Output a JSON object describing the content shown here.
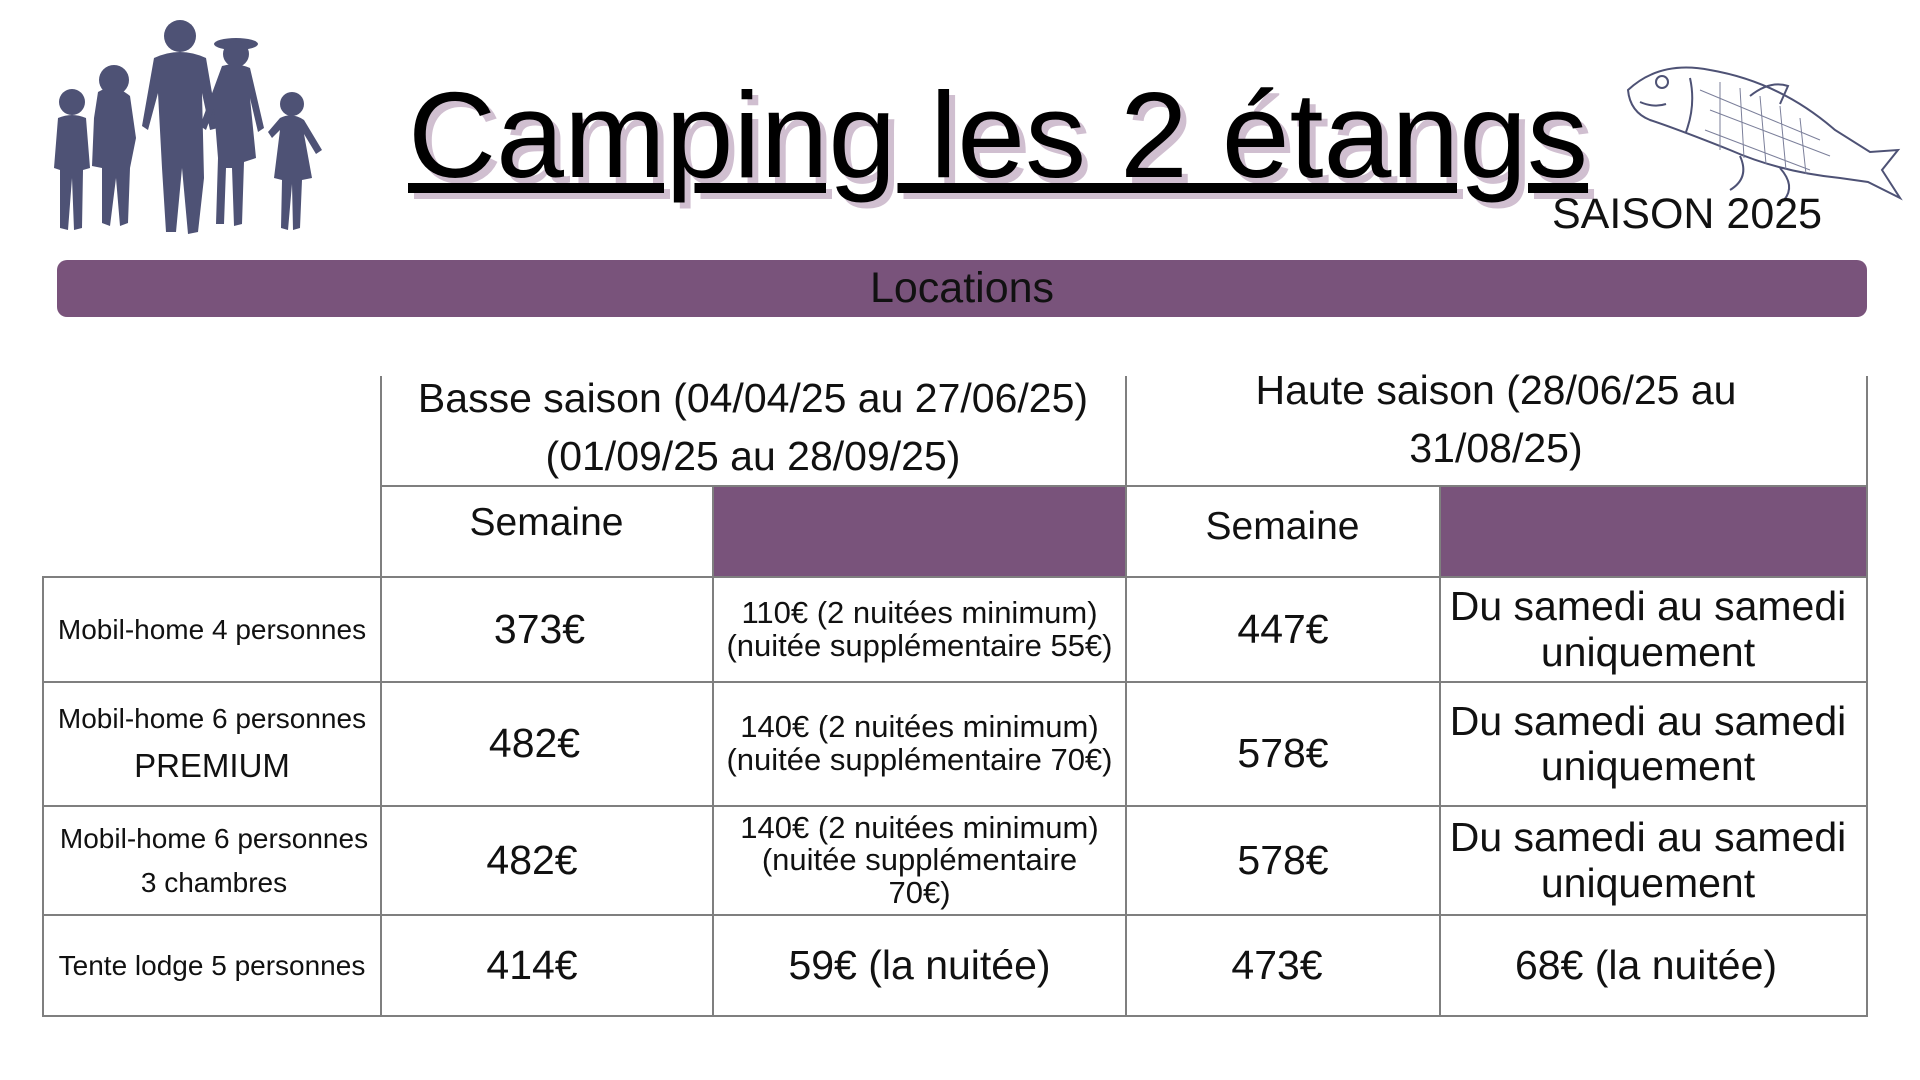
{
  "header": {
    "title": "Camping les 2 étangs",
    "season": "SAISON 2025"
  },
  "banner": {
    "label": "Locations"
  },
  "table": {
    "low_season": {
      "line1": "Basse saison (04/04/25 au 27/06/25)",
      "line2": "(01/09/25 au 28/09/25)",
      "week_label": "Semaine"
    },
    "high_season": {
      "line1": "Haute saison (28/06/25 au",
      "line2": "31/08/25)",
      "week_label": "Semaine"
    },
    "rows": [
      {
        "label_line1": "Mobil-home 4 personnes",
        "label_line2": "",
        "low_week": "373€",
        "low_night_line1": "110€ (2 nuitées minimum)",
        "low_night_line2": "(nuitée supplémentaire 55€)",
        "high_week": "447€",
        "high_night_line1": "Du samedi au samedi",
        "high_night_line2": "uniquement"
      },
      {
        "label_line1": "Mobil-home 6 personnes",
        "label_line2": "PREMIUM",
        "low_week": "482€",
        "low_night_line1": "140€ (2 nuitées minimum)",
        "low_night_line2": "(nuitée supplémentaire 70€)",
        "high_week": "578€",
        "high_night_line1": "Du samedi au samedi",
        "high_night_line2": "uniquement"
      },
      {
        "label_line1": "Mobil-home 6 personnes",
        "label_line2": "3 chambres",
        "low_week": "482€",
        "low_night_line1": "140€ (2 nuitées minimum)",
        "low_night_line2": "(nuitée supplémentaire",
        "low_night_line3": "70€)",
        "high_week": "578€",
        "high_night_line1": "Du samedi au samedi",
        "high_night_line2": "uniquement"
      },
      {
        "label_line1": "Tente lodge 5 personnes",
        "low_week": "414€",
        "low_night": "59€ (la nuitée)",
        "high_week": "473€",
        "high_night": "68€ (la nuitée)"
      }
    ]
  },
  "colors": {
    "accent_purple": "#79537b",
    "silhouette": "#4e5275",
    "grid_line": "#7f7f7f"
  },
  "images": {
    "left": "family-silhouette-icon",
    "right": "fish-illustration-icon"
  }
}
